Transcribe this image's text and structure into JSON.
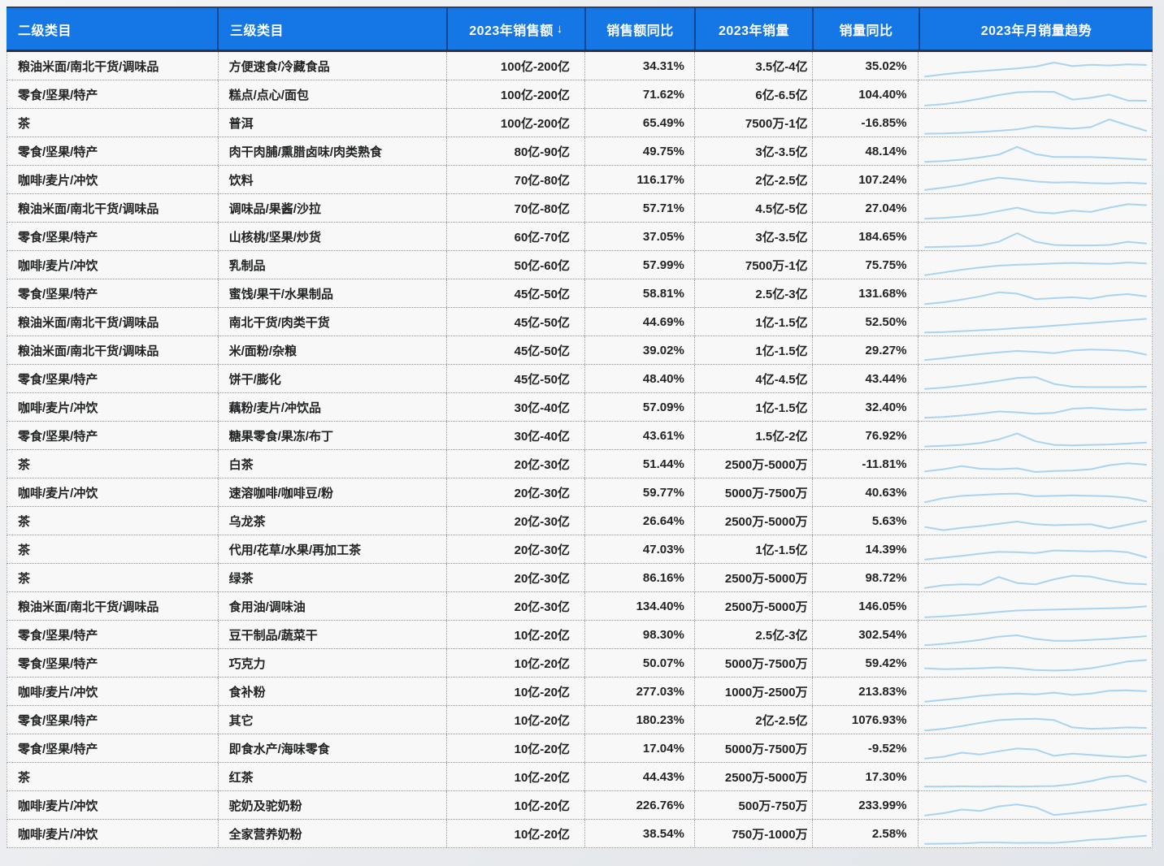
{
  "table": {
    "accent_color": "#1577e6",
    "sparkline_color": "#a9d3f0",
    "columns": [
      {
        "label": "二级类目"
      },
      {
        "label": "三级类目"
      },
      {
        "label": "2023年销售额",
        "sort": "↓"
      },
      {
        "label": "销售额同比"
      },
      {
        "label": "2023年销量"
      },
      {
        "label": "销量同比"
      },
      {
        "label": "2023年月销量趋势"
      }
    ],
    "rows": [
      {
        "cat2": "粮油米面/南北干货/调味品",
        "cat3": "方便速食/冷藏食品",
        "sales": "100亿-200亿",
        "sales_yoy": "34.31%",
        "volume": "3.5亿-4亿",
        "volume_yoy": "35.02%",
        "trend": [
          6,
          16,
          24,
          30,
          36,
          42,
          50,
          68,
          52,
          58,
          55,
          60,
          57
        ]
      },
      {
        "cat2": "零食/坚果/特产",
        "cat3": "糕点/点心/面包",
        "sales": "100亿-200亿",
        "sales_yoy": "71.62%",
        "volume": "6亿-6.5亿",
        "volume_yoy": "104.40%",
        "trend": [
          4,
          10,
          20,
          34,
          50,
          62,
          65,
          64,
          30,
          38,
          52,
          26,
          25
        ]
      },
      {
        "cat2": "茶",
        "cat3": "普洱",
        "sales": "100亿-200亿",
        "sales_yoy": "65.49%",
        "volume": "7500万-1亿",
        "volume_yoy": "-16.85%",
        "trend": [
          5,
          6,
          9,
          13,
          18,
          24,
          38,
          32,
          27,
          34,
          68,
          42,
          18
        ]
      },
      {
        "cat2": "零食/坚果/特产",
        "cat3": "肉干肉脯/熏腊卤味/肉类熟食",
        "sales": "80亿-90亿",
        "sales_yoy": "49.75%",
        "volume": "3亿-3.5亿",
        "volume_yoy": "48.14%",
        "trend": [
          6,
          10,
          16,
          26,
          38,
          72,
          40,
          28,
          28,
          27,
          24,
          20,
          16
        ]
      },
      {
        "cat2": "咖啡/麦片/冲饮",
        "cat3": "饮料",
        "sales": "70亿-80亿",
        "sales_yoy": "116.17%",
        "volume": "2亿-2.5亿",
        "volume_yoy": "107.24%",
        "trend": [
          8,
          18,
          30,
          48,
          62,
          55,
          45,
          40,
          42,
          38,
          36,
          40,
          36
        ]
      },
      {
        "cat2": "粮油米面/南北干货/调味品",
        "cat3": "调味品/果酱/沙拉",
        "sales": "70亿-80亿",
        "sales_yoy": "57.71%",
        "volume": "4.5亿-5亿",
        "volume_yoy": "27.04%",
        "trend": [
          6,
          10,
          16,
          24,
          40,
          55,
          35,
          30,
          42,
          36,
          55,
          70,
          66
        ]
      },
      {
        "cat2": "零食/坚果/特产",
        "cat3": "山核桃/坚果/炒货",
        "sales": "60亿-70亿",
        "sales_yoy": "37.05%",
        "volume": "3亿-3.5亿",
        "volume_yoy": "184.65%",
        "trend": [
          6,
          8,
          10,
          14,
          30,
          68,
          30,
          16,
          14,
          14,
          16,
          30,
          22
        ]
      },
      {
        "cat2": "咖啡/麦片/冲饮",
        "cat3": "乳制品",
        "sales": "50亿-60亿",
        "sales_yoy": "57.99%",
        "volume": "7500万-1亿",
        "volume_yoy": "75.75%",
        "trend": [
          8,
          20,
          32,
          42,
          50,
          54,
          56,
          60,
          62,
          60,
          58,
          64,
          60
        ]
      },
      {
        "cat2": "零食/坚果/特产",
        "cat3": "蜜饯/果干/水果制品",
        "sales": "45亿-50亿",
        "sales_yoy": "58.81%",
        "volume": "2.5亿-3亿",
        "volume_yoy": "131.68%",
        "trend": [
          6,
          14,
          26,
          40,
          58,
          52,
          28,
          32,
          36,
          30,
          44,
          50,
          40
        ]
      },
      {
        "cat2": "粮油米面/南北干货/调味品",
        "cat3": "南北干货/肉类干货",
        "sales": "45亿-50亿",
        "sales_yoy": "44.69%",
        "volume": "1亿-1.5亿",
        "volume_yoy": "52.50%",
        "trend": [
          6,
          8,
          12,
          16,
          20,
          26,
          30,
          36,
          42,
          48,
          54,
          60,
          66
        ]
      },
      {
        "cat2": "粮油米面/南北干货/调味品",
        "cat3": "米/面粉/杂粮",
        "sales": "45亿-50亿",
        "sales_yoy": "39.02%",
        "volume": "1亿-1.5亿",
        "volume_yoy": "29.27%",
        "trend": [
          10,
          18,
          28,
          36,
          44,
          50,
          46,
          40,
          52,
          56,
          54,
          50,
          34
        ]
      },
      {
        "cat2": "零食/坚果/特产",
        "cat3": "饼干/膨化",
        "sales": "45亿-50亿",
        "sales_yoy": "48.40%",
        "volume": "4亿-4.5亿",
        "volume_yoy": "43.44%",
        "trend": [
          8,
          14,
          22,
          32,
          44,
          56,
          60,
          30,
          18,
          16,
          16,
          16,
          18
        ]
      },
      {
        "cat2": "咖啡/麦片/冲饮",
        "cat3": "藕粉/麦片/冲饮品",
        "sales": "30亿-40亿",
        "sales_yoy": "57.09%",
        "volume": "1亿-1.5亿",
        "volume_yoy": "32.40%",
        "trend": [
          6,
          10,
          16,
          24,
          34,
          30,
          24,
          28,
          46,
          50,
          44,
          40,
          44
        ]
      },
      {
        "cat2": "零食/坚果/特产",
        "cat3": "糖果零食/果冻/布丁",
        "sales": "30亿-40亿",
        "sales_yoy": "43.61%",
        "volume": "1.5亿-2亿",
        "volume_yoy": "76.92%",
        "trend": [
          5,
          8,
          12,
          20,
          36,
          62,
          28,
          12,
          10,
          12,
          14,
          18,
          22
        ]
      },
      {
        "cat2": "茶",
        "cat3": "白茶",
        "sales": "20亿-30亿",
        "sales_yoy": "51.44%",
        "volume": "2500万-5000万",
        "volume_yoy": "-11.81%",
        "trend": [
          20,
          30,
          44,
          32,
          30,
          34,
          18,
          22,
          24,
          30,
          48,
          56,
          50
        ]
      },
      {
        "cat2": "咖啡/麦片/冲饮",
        "cat3": "速溶咖啡/咖啡豆/粉",
        "sales": "20亿-30亿",
        "sales_yoy": "59.77%",
        "volume": "5000万-7500万",
        "volume_yoy": "40.63%",
        "trend": [
          10,
          28,
          38,
          42,
          46,
          48,
          36,
          38,
          40,
          38,
          36,
          30,
          14
        ]
      },
      {
        "cat2": "茶",
        "cat3": "乌龙茶",
        "sales": "20亿-30亿",
        "sales_yoy": "26.64%",
        "volume": "2500万-5000万",
        "volume_yoy": "5.63%",
        "trend": [
          26,
          12,
          22,
          30,
          40,
          50,
          38,
          34,
          36,
          38,
          20,
          36,
          52
        ]
      },
      {
        "cat2": "茶",
        "cat3": "代用/花草/水果/再加工茶",
        "sales": "20亿-30亿",
        "sales_yoy": "47.03%",
        "volume": "1亿-1.5亿",
        "volume_yoy": "14.39%",
        "trend": [
          8,
          16,
          24,
          34,
          42,
          40,
          36,
          48,
          46,
          44,
          46,
          40,
          18
        ]
      },
      {
        "cat2": "茶",
        "cat3": "绿茶",
        "sales": "20亿-30亿",
        "sales_yoy": "86.16%",
        "volume": "2500万-5000万",
        "volume_yoy": "98.72%",
        "trend": [
          8,
          20,
          24,
          22,
          56,
          30,
          24,
          46,
          62,
          58,
          40,
          28,
          24
        ]
      },
      {
        "cat2": "粮油米面/南北干货/调味品",
        "cat3": "食用油/调味油",
        "sales": "20亿-30亿",
        "sales_yoy": "134.40%",
        "volume": "2500万-5000万",
        "volume_yoy": "146.05%",
        "trend": [
          4,
          8,
          14,
          20,
          28,
          34,
          36,
          38,
          40,
          42,
          44,
          46,
          52
        ]
      },
      {
        "cat2": "零食/坚果/特产",
        "cat3": "豆干制品/蔬菜干",
        "sales": "10亿-20亿",
        "sales_yoy": "98.30%",
        "volume": "2.5亿-3亿",
        "volume_yoy": "302.54%",
        "trend": [
          6,
          12,
          20,
          30,
          44,
          50,
          34,
          26,
          26,
          30,
          34,
          40,
          46
        ]
      },
      {
        "cat2": "零食/坚果/特产",
        "cat3": "巧克力",
        "sales": "10亿-20亿",
        "sales_yoy": "50.07%",
        "volume": "5000万-7500万",
        "volume_yoy": "59.42%",
        "trend": [
          30,
          26,
          28,
          30,
          34,
          30,
          22,
          20,
          22,
          30,
          44,
          60,
          66
        ]
      },
      {
        "cat2": "咖啡/麦片/冲饮",
        "cat3": "食补粉",
        "sales": "10亿-20亿",
        "sales_yoy": "277.03%",
        "volume": "1000万-2500万",
        "volume_yoy": "213.83%",
        "trend": [
          8,
          16,
          24,
          34,
          40,
          44,
          40,
          48,
          38,
          44,
          56,
          58,
          54
        ]
      },
      {
        "cat2": "零食/坚果/特产",
        "cat3": "其它",
        "sales": "10亿-20亿",
        "sales_yoy": "180.23%",
        "volume": "2亿-2.5亿",
        "volume_yoy": "1076.93%",
        "trend": [
          6,
          14,
          26,
          40,
          52,
          56,
          58,
          52,
          20,
          14,
          16,
          20,
          18
        ]
      },
      {
        "cat2": "零食/坚果/特产",
        "cat3": "即食水产/海味零食",
        "sales": "10亿-20亿",
        "sales_yoy": "17.04%",
        "volume": "5000万-7500万",
        "volume_yoy": "-9.52%",
        "trend": [
          8,
          16,
          34,
          26,
          40,
          52,
          48,
          20,
          30,
          24,
          18,
          14,
          22
        ]
      },
      {
        "cat2": "茶",
        "cat3": "红茶",
        "sales": "10亿-20亿",
        "sales_yoy": "44.43%",
        "volume": "2500万-5000万",
        "volume_yoy": "17.30%",
        "trend": [
          10,
          10,
          11,
          10,
          11,
          10,
          11,
          12,
          20,
          34,
          52,
          58,
          30
        ]
      },
      {
        "cat2": "咖啡/麦片/冲饮",
        "cat3": "驼奶及驼奶粉",
        "sales": "10亿-20亿",
        "sales_yoy": "226.76%",
        "volume": "500万-750万",
        "volume_yoy": "233.99%",
        "trend": [
          8,
          18,
          34,
          28,
          48,
          56,
          44,
          10,
          18,
          26,
          34,
          46,
          56
        ]
      },
      {
        "cat2": "咖啡/麦片/冲饮",
        "cat3": "全家营养奶粉",
        "sales": "10亿-20亿",
        "sales_yoy": "38.54%",
        "volume": "750万-1000万",
        "volume_yoy": "2.58%",
        "trend": [
          8,
          9,
          10,
          14,
          14,
          12,
          13,
          12,
          18,
          26,
          30,
          38,
          44
        ]
      }
    ]
  }
}
